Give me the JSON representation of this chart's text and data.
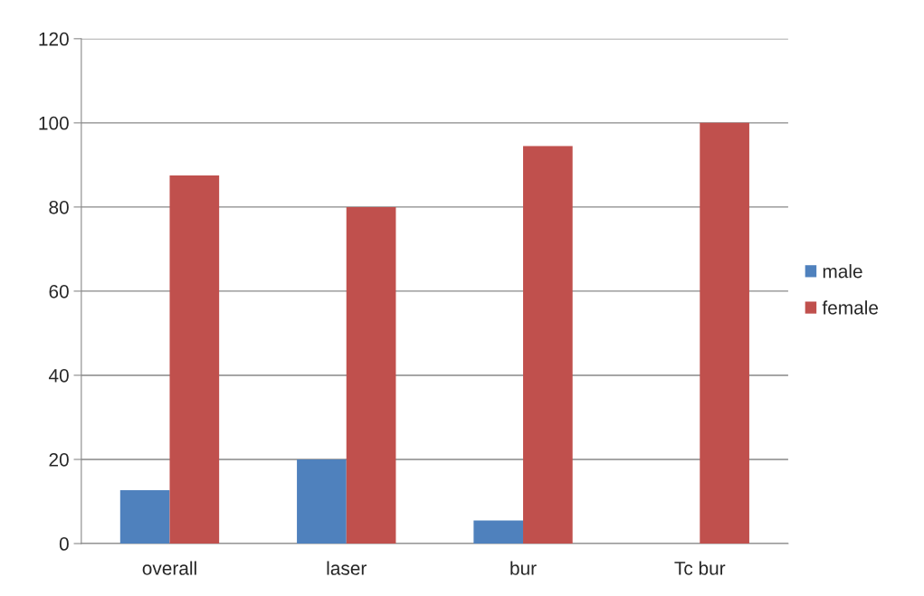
{
  "chart_data": {
    "type": "bar",
    "categories": [
      "overall",
      "laser",
      "bur",
      "Tc bur"
    ],
    "series": [
      {
        "name": "male",
        "color": "#4f81bd",
        "values": [
          12.7,
          20,
          5.5,
          0
        ]
      },
      {
        "name": "female",
        "color": "#c0504d",
        "values": [
          87.5,
          80,
          94.5,
          100
        ]
      }
    ],
    "ylim": [
      0,
      120
    ],
    "yticks": [
      0,
      20,
      40,
      60,
      80,
      100,
      120
    ],
    "grid": "y",
    "legend": "right"
  }
}
